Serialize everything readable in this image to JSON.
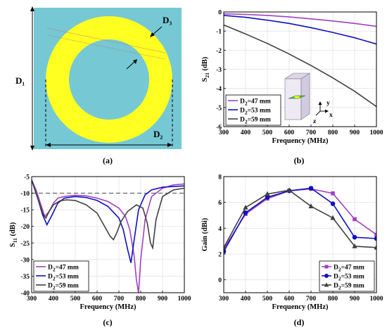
{
  "figure": {
    "captions": [
      "(a)",
      "(b)",
      "(c)",
      "(d)"
    ]
  },
  "diagram": {
    "labels": {
      "d1": "D₁",
      "d2": "D₂",
      "d3": "D₃"
    },
    "colors": {
      "substrate": "#76c8d4",
      "ring": "#ffff22",
      "line": "#000000"
    }
  },
  "inset": {
    "axis_y": "y",
    "axis_x": "x",
    "axis_z": "z"
  },
  "chart_data": [
    {
      "id": "b",
      "type": "line",
      "xlabel": "Frequency (MHz)",
      "ylabel": "S21 (dB)",
      "xlim": [
        300,
        1000
      ],
      "ylim": [
        -6,
        0
      ],
      "xticks": [
        300,
        400,
        500,
        600,
        700,
        800,
        900,
        1000
      ],
      "yticks": [
        -6,
        -5,
        -4,
        -3,
        -2,
        -1,
        0
      ],
      "grid": true,
      "legend_position": "bottom-left",
      "series": [
        {
          "name": "D2=47 mm",
          "color": "#a040c0",
          "x": [
            300,
            400,
            500,
            600,
            700,
            800,
            900,
            1000
          ],
          "y": [
            -0.1,
            -0.13,
            -0.18,
            -0.26,
            -0.36,
            -0.47,
            -0.6,
            -0.75
          ]
        },
        {
          "name": "D2=53 mm",
          "color": "#1010c0",
          "x": [
            300,
            400,
            500,
            600,
            700,
            800,
            900,
            1000
          ],
          "y": [
            -0.18,
            -0.28,
            -0.43,
            -0.6,
            -0.82,
            -1.07,
            -1.35,
            -1.68
          ]
        },
        {
          "name": "D2=59 mm",
          "color": "#404040",
          "x": [
            300,
            400,
            500,
            600,
            700,
            800,
            900,
            1000
          ],
          "y": [
            -0.68,
            -1.15,
            -1.65,
            -2.2,
            -2.8,
            -3.45,
            -4.15,
            -4.95
          ]
        }
      ]
    },
    {
      "id": "c",
      "type": "line",
      "xlabel": "Frequency (MHz)",
      "ylabel": "S11 (dB)",
      "xlim": [
        300,
        1000
      ],
      "ylim": [
        -40,
        -5
      ],
      "xticks": [
        300,
        400,
        500,
        600,
        700,
        800,
        900,
        1000
      ],
      "yticks": [
        -40,
        -35,
        -30,
        -25,
        -20,
        -15,
        -10,
        -5
      ],
      "grid": true,
      "reference_line": -10,
      "legend_position": "bottom-left",
      "series": [
        {
          "name": "D2=47 mm",
          "color": "#a040c0",
          "x": [
            300,
            320,
            340,
            360,
            380,
            400,
            420,
            450,
            500,
            550,
            600,
            650,
            700,
            730,
            750,
            770,
            780,
            790,
            800,
            820,
            850,
            900,
            950,
            1000
          ],
          "y": [
            -6,
            -9,
            -13,
            -17,
            -15.5,
            -13,
            -11.5,
            -11,
            -10.6,
            -10.8,
            -11.5,
            -12.5,
            -14.5,
            -17,
            -21,
            -29,
            -36,
            -40,
            -30,
            -18,
            -11,
            -8.5,
            -7.5,
            -7.2
          ]
        },
        {
          "name": "D2=53 mm",
          "color": "#1010c0",
          "x": [
            300,
            330,
            350,
            370,
            390,
            420,
            450,
            500,
            550,
            600,
            650,
            700,
            720,
            740,
            755,
            770,
            790,
            820,
            850,
            900,
            950,
            1000
          ],
          "y": [
            -6,
            -12,
            -16.5,
            -19.5,
            -17,
            -13,
            -11.5,
            -11,
            -11.3,
            -12.2,
            -14,
            -17.5,
            -21,
            -27,
            -31,
            -24,
            -15,
            -10.5,
            -9,
            -8.2,
            -8,
            -7.8
          ]
        },
        {
          "name": "D2=59 mm",
          "color": "#404040",
          "x": [
            300,
            330,
            350,
            365,
            380,
            400,
            430,
            460,
            500,
            550,
            600,
            630,
            660,
            675,
            690,
            710,
            740,
            780,
            810,
            830,
            845,
            855,
            870,
            900,
            950,
            1000
          ],
          "y": [
            -6,
            -12,
            -16,
            -17.5,
            -15.5,
            -13.5,
            -12.3,
            -12,
            -12.2,
            -13.5,
            -16,
            -19.5,
            -23,
            -24,
            -22,
            -18.5,
            -15.5,
            -13.5,
            -14.5,
            -19,
            -25,
            -26.5,
            -18,
            -11,
            -9,
            -8.5
          ]
        }
      ]
    },
    {
      "id": "d",
      "type": "line",
      "xlabel": "Frequency (MHz)",
      "ylabel": "Gain (dBi)",
      "xlim": [
        300,
        1000
      ],
      "ylim": [
        -1,
        8
      ],
      "xticks": [
        300,
        400,
        500,
        600,
        700,
        800,
        900,
        1000
      ],
      "yticks": [
        0,
        2,
        4,
        6,
        8
      ],
      "grid": true,
      "legend_position": "bottom-right",
      "series": [
        {
          "name": "D2=47 mm",
          "color": "#a040c0",
          "marker": "square",
          "x": [
            300,
            400,
            500,
            600,
            700,
            800,
            900,
            1000
          ],
          "y": [
            2.4,
            5.1,
            6.3,
            6.9,
            7.05,
            6.7,
            4.7,
            3.5
          ]
        },
        {
          "name": "D2=53 mm",
          "color": "#1010c0",
          "marker": "circle",
          "x": [
            300,
            400,
            500,
            600,
            700,
            800,
            900,
            1000
          ],
          "y": [
            2.2,
            5.2,
            6.4,
            6.9,
            7.1,
            5.9,
            3.3,
            3.2
          ]
        },
        {
          "name": "D2=59 mm",
          "color": "#404040",
          "marker": "triangle",
          "x": [
            300,
            400,
            500,
            600,
            700,
            800,
            900,
            1000
          ],
          "y": [
            2.5,
            5.6,
            6.65,
            6.95,
            5.7,
            4.8,
            2.6,
            2.5
          ]
        }
      ]
    }
  ]
}
